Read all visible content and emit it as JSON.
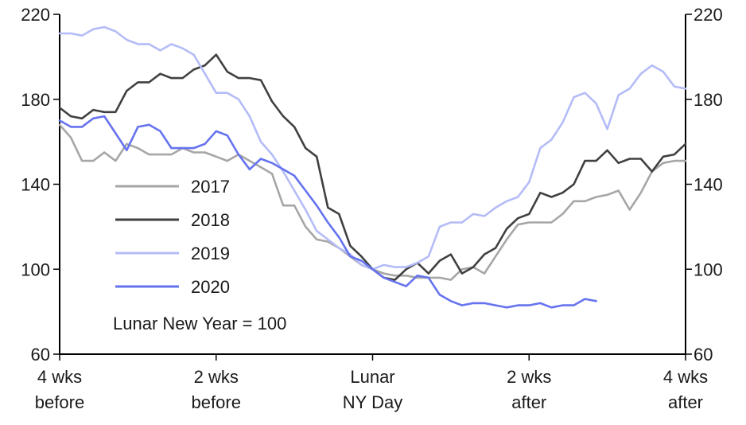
{
  "chart_data": {
    "type": "line",
    "title": "",
    "xlabel": "",
    "ylabel": "",
    "ylim": [
      60,
      220
    ],
    "yticks": [
      60,
      100,
      140,
      180,
      220
    ],
    "xlim": [
      -28,
      28
    ],
    "xticks": [
      {
        "x": -28,
        "lines": [
          "4 wks",
          "before"
        ]
      },
      {
        "x": -14,
        "lines": [
          "2 wks",
          "before"
        ]
      },
      {
        "x": 0,
        "lines": [
          "Lunar",
          "NY Day"
        ]
      },
      {
        "x": 14,
        "lines": [
          "2 wks",
          "after"
        ]
      },
      {
        "x": 28,
        "lines": [
          "4 wks",
          "after"
        ]
      }
    ],
    "grid": false,
    "legend_position": "center-left",
    "annotation": "Lunar New Year = 100",
    "series": [
      {
        "name": "2017",
        "color": "#a6a6a6",
        "x": [
          -28,
          -27,
          -26,
          -25,
          -24,
          -23,
          -22,
          -21,
          -20,
          -19,
          -18,
          -17,
          -16,
          -15,
          -14,
          -13,
          -12,
          -11,
          -10,
          -9,
          -8,
          -7,
          -6,
          -5,
          -4,
          -3,
          -2,
          -1,
          0,
          1,
          2,
          3,
          4,
          5,
          6,
          7,
          8,
          9,
          10,
          11,
          12,
          13,
          14,
          15,
          16,
          17,
          18,
          19,
          20,
          21,
          22,
          23,
          24,
          25,
          26,
          27,
          28
        ],
        "values": [
          168,
          162,
          151,
          151,
          155,
          151,
          159,
          157,
          154,
          154,
          154,
          157,
          155,
          155,
          153,
          151,
          154,
          151,
          148,
          145,
          130,
          130,
          120,
          114,
          113,
          110,
          106,
          102,
          100,
          98,
          97,
          97,
          96,
          96,
          96,
          95,
          100,
          101,
          98,
          106,
          114,
          121,
          122,
          122,
          122,
          126,
          132,
          132,
          134,
          135,
          137,
          128,
          136,
          146,
          150,
          151,
          151
        ]
      },
      {
        "name": "2018",
        "color": "#404040",
        "x": [
          -28,
          -27,
          -26,
          -25,
          -24,
          -23,
          -22,
          -21,
          -20,
          -19,
          -18,
          -17,
          -16,
          -15,
          -14,
          -13,
          -12,
          -11,
          -10,
          -9,
          -8,
          -7,
          -6,
          -5,
          -4,
          -3,
          -2,
          -1,
          0,
          1,
          2,
          3,
          4,
          5,
          6,
          7,
          8,
          9,
          10,
          11,
          12,
          13,
          14,
          15,
          16,
          17,
          18,
          19,
          20,
          21,
          22,
          23,
          24,
          25,
          26,
          27,
          28
        ],
        "values": [
          176,
          172,
          171,
          175,
          174,
          174,
          184,
          188,
          188,
          192,
          190,
          190,
          194,
          196,
          201,
          193,
          190,
          190,
          189,
          179,
          172,
          167,
          157,
          153,
          129,
          126,
          111,
          106,
          100,
          96,
          95,
          100,
          103,
          98,
          104,
          107,
          98,
          101,
          107,
          110,
          119,
          124,
          126,
          136,
          134,
          136,
          140,
          151,
          151,
          156,
          150,
          152,
          152,
          146,
          153,
          154,
          159
        ]
      },
      {
        "name": "2019",
        "color": "#b4bcf7",
        "x": [
          -28,
          -27,
          -26,
          -25,
          -24,
          -23,
          -22,
          -21,
          -20,
          -19,
          -18,
          -17,
          -16,
          -15,
          -14,
          -13,
          -12,
          -11,
          -10,
          -9,
          -8,
          -7,
          -6,
          -5,
          -4,
          -3,
          -2,
          -1,
          0,
          1,
          2,
          3,
          4,
          5,
          6,
          7,
          8,
          9,
          10,
          11,
          12,
          13,
          14,
          15,
          16,
          17,
          18,
          19,
          20,
          21,
          22,
          23,
          24,
          25,
          26,
          27,
          28
        ],
        "values": [
          211,
          211,
          210,
          213,
          214,
          212,
          208,
          206,
          206,
          203,
          206,
          204,
          201,
          192,
          183,
          183,
          180,
          172,
          160,
          154,
          146,
          137,
          128,
          118,
          114,
          110,
          107,
          102,
          100,
          102,
          101,
          101,
          103,
          106,
          120,
          122,
          122,
          126,
          125,
          129,
          132,
          134,
          141,
          157,
          161,
          169,
          181,
          183,
          178,
          166,
          182,
          185,
          192,
          196,
          193,
          186,
          185
        ]
      },
      {
        "name": "2020",
        "color": "#6673ee",
        "x": [
          -28,
          -27,
          -26,
          -25,
          -24,
          -23,
          -22,
          -21,
          -20,
          -19,
          -18,
          -17,
          -16,
          -15,
          -14,
          -13,
          -12,
          -11,
          -10,
          -9,
          -8,
          -7,
          -6,
          -5,
          -4,
          -3,
          -2,
          -1,
          0,
          1,
          2,
          3,
          4,
          5,
          6,
          7,
          8,
          9,
          10,
          11,
          12,
          13,
          14,
          15,
          16,
          17,
          18,
          19,
          20
        ],
        "values": [
          170,
          167,
          167,
          171,
          172,
          164,
          156,
          167,
          168,
          165,
          157,
          157,
          157,
          159,
          165,
          163,
          154,
          147,
          152,
          150,
          147,
          144,
          137,
          130,
          122,
          115,
          106,
          104,
          100,
          96,
          94,
          92,
          97,
          96,
          88,
          85,
          83,
          84,
          84,
          83,
          82,
          83,
          83,
          84,
          82,
          83,
          83,
          86,
          85
        ]
      }
    ]
  }
}
